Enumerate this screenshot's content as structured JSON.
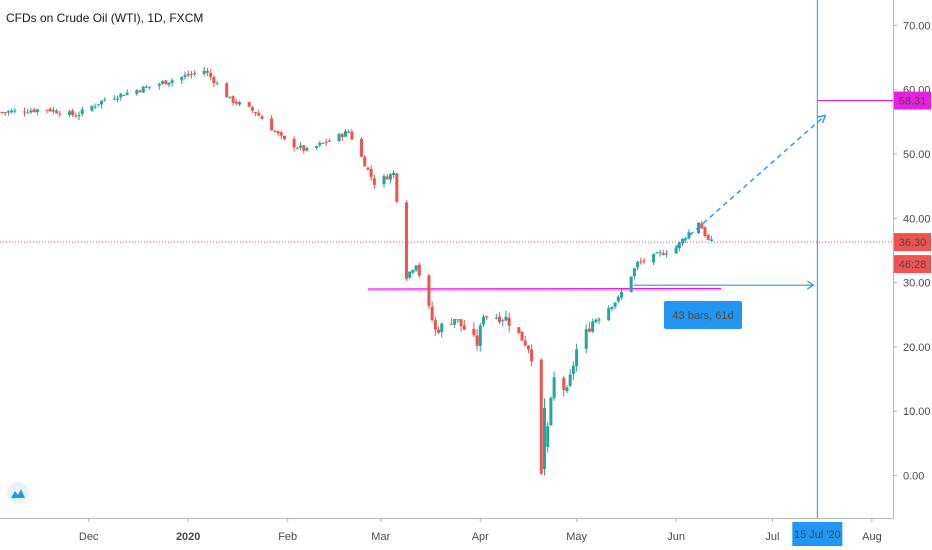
{
  "title": "CFDs on Crude Oil (WTI), 1D, FXCM",
  "colors": {
    "up": "#26a69a",
    "down": "#ef5350",
    "magenta": "#e91ee3",
    "blue": "#2196f3",
    "last_price": "#ef5350",
    "grid": "#eef0f3"
  },
  "chart_data": {
    "type": "candlestick",
    "title": "CFDs on Crude Oil (WTI), 1D, FXCM",
    "x_ticks": [
      "Dec",
      "2020",
      "Feb",
      "Mar",
      "Apr",
      "May",
      "Jun",
      "Jul",
      "15 Jul '20",
      "Aug"
    ],
    "y_ticks": [
      "0.00",
      "10.00",
      "20.00",
      "30.00",
      "40.00",
      "50.00",
      "60.00",
      "70.00"
    ],
    "ylim": [
      -6,
      75
    ],
    "grid": false,
    "price_labels": {
      "target": "58.31",
      "last": "36.30",
      "countdown": "46:28"
    },
    "level_values": {
      "target": 58.31,
      "last": 36.3,
      "neckline": 29.0
    },
    "measure_label": "43 bars, 61d",
    "date_range": {
      "start": "2019-11-04",
      "end": "2020-06-12"
    },
    "projection": {
      "from_date": "2020-06-01",
      "from_price": 35.5,
      "to_date": "2020-07-15",
      "to_price": 56
    },
    "range_measure": {
      "from_date": "2020-05-15",
      "to_date": "2020-07-15",
      "price": 29.6
    },
    "anchors": [
      [
        "2019-11-04",
        56.5
      ],
      [
        "2019-11-18",
        57.0
      ],
      [
        "2019-11-27",
        56.0
      ],
      [
        "2019-12-06",
        58.5
      ],
      [
        "2019-12-20",
        60.5
      ],
      [
        "2020-01-06",
        63.0
      ],
      [
        "2020-01-08",
        62.0
      ],
      [
        "2020-01-14",
        58.5
      ],
      [
        "2020-01-22",
        56.5
      ],
      [
        "2020-01-31",
        52.0
      ],
      [
        "2020-02-07",
        50.5
      ],
      [
        "2020-02-20",
        53.5
      ],
      [
        "2020-02-28",
        45.5
      ],
      [
        "2020-03-05",
        47.0
      ],
      [
        "2020-03-09",
        31.0
      ],
      [
        "2020-03-12",
        33.0
      ],
      [
        "2020-03-18",
        22.5
      ],
      [
        "2020-03-24",
        24.5
      ],
      [
        "2020-03-31",
        20.5
      ],
      [
        "2020-04-02",
        25.0
      ],
      [
        "2020-04-09",
        24.5
      ],
      [
        "2020-04-16",
        20.0
      ],
      [
        "2020-04-20",
        14.0
      ],
      [
        "2020-04-21",
        4.0
      ],
      [
        "2020-04-24",
        15.0
      ],
      [
        "2020-04-28",
        13.0
      ],
      [
        "2020-05-01",
        19.5
      ],
      [
        "2020-05-06",
        24.0
      ],
      [
        "2020-05-14",
        27.5
      ],
      [
        "2020-05-20",
        33.0
      ],
      [
        "2020-06-01",
        35.5
      ],
      [
        "2020-06-08",
        39.5
      ],
      [
        "2020-06-11",
        36.5
      ],
      [
        "2020-06-12",
        36.3
      ]
    ]
  }
}
